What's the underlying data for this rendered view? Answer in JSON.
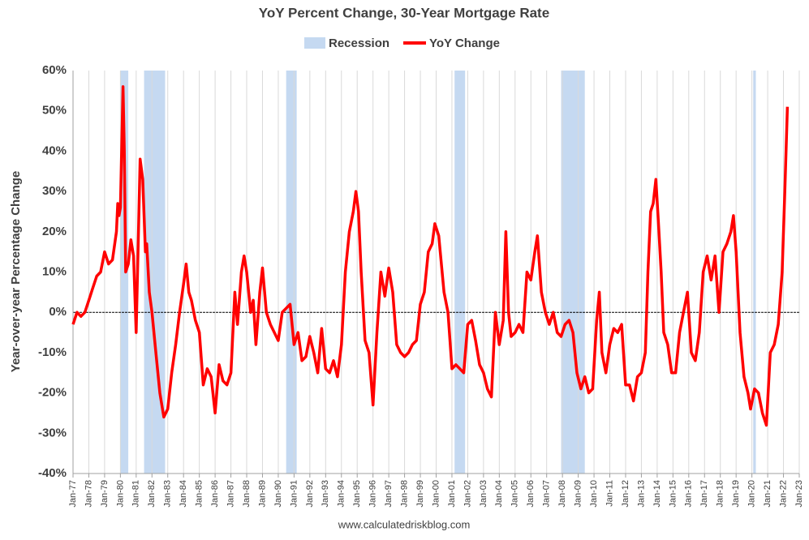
{
  "chart_data": {
    "type": "line",
    "title": "YoY Percent Change, 30-Year Mortgage Rate",
    "y_label": "Year-over-year Percentage Change",
    "source": "www.calculatedriskblog.com",
    "legend": "top",
    "grid": "x",
    "recessions": {
      "name": "Recession",
      "color": "#c5d9f1",
      "periods": [
        [
          "Jan-80",
          "Jul-80"
        ],
        [
          "Jul-81",
          "Nov-82"
        ],
        [
          "Jul-90",
          "Mar-91"
        ],
        [
          "Mar-01",
          "Nov-01"
        ],
        [
          "Dec-07",
          "Jun-09"
        ],
        [
          "Feb-20",
          "Apr-20"
        ]
      ]
    },
    "xlim": [
      "Jan-77",
      "Jan-23"
    ],
    "xticks": [
      "Jan-77",
      "Jan-78",
      "Jan-79",
      "Jan-80",
      "Jan-81",
      "Jan-82",
      "Jan-83",
      "Jan-84",
      "Jan-85",
      "Jan-86",
      "Jan-87",
      "Jan-88",
      "Jan-89",
      "Jan-90",
      "Jan-91",
      "Jan-92",
      "Jan-93",
      "Jan-94",
      "Jan-95",
      "Jan-96",
      "Jan-97",
      "Jan-98",
      "Jan-99",
      "Jan-00",
      "Jan-01",
      "Jan-02",
      "Jan-03",
      "Jan-04",
      "Jan-05",
      "Jan-06",
      "Jan-07",
      "Jan-08",
      "Jan-09",
      "Jan-10",
      "Jan-11",
      "Jan-12",
      "Jan-13",
      "Jan-14",
      "Jan-15",
      "Jan-16",
      "Jan-17",
      "Jan-18",
      "Jan-19",
      "Jan-20",
      "Jan-21",
      "Jan-22",
      "Jan-23"
    ],
    "ylim": [
      -40,
      60
    ],
    "yticks": [
      {
        "value": -40,
        "label": "-40%"
      },
      {
        "value": -30,
        "label": "-30%"
      },
      {
        "value": -20,
        "label": "-20%"
      },
      {
        "value": -10,
        "label": "-10%"
      },
      {
        "value": 0,
        "label": "0%"
      },
      {
        "value": 10,
        "label": "10%"
      },
      {
        "value": 20,
        "label": "20%"
      },
      {
        "value": 30,
        "label": "30%"
      },
      {
        "value": 40,
        "label": "40%"
      },
      {
        "value": 50,
        "label": "50%"
      },
      {
        "value": 60,
        "label": "60%"
      }
    ],
    "x": [
      "Jan-77",
      "Apr-77",
      "Jul-77",
      "Oct-77",
      "Jan-78",
      "Apr-78",
      "Jul-78",
      "Oct-78",
      "Jan-79",
      "Apr-79",
      "Jul-79",
      "Oct-79",
      "Nov-79",
      "Dec-79",
      "Jan-80",
      "Mar-80",
      "Apr-80",
      "May-80",
      "Jul-80",
      "Sep-80",
      "Nov-80",
      "Jan-81",
      "Apr-81",
      "Jun-81",
      "Aug-81",
      "Sep-81",
      "Nov-81",
      "Jan-82",
      "Apr-82",
      "Jul-82",
      "Oct-82",
      "Jan-83",
      "Apr-83",
      "Jul-83",
      "Oct-83",
      "Jan-84",
      "Mar-84",
      "May-84",
      "Jul-84",
      "Oct-84",
      "Jan-85",
      "Apr-85",
      "Jul-85",
      "Oct-85",
      "Jan-86",
      "Apr-86",
      "Jul-86",
      "Oct-86",
      "Jan-87",
      "Apr-87",
      "Jun-87",
      "Sep-87",
      "Nov-87",
      "Jan-88",
      "Apr-88",
      "Jun-88",
      "Aug-88",
      "Nov-88",
      "Jan-89",
      "Apr-89",
      "Jul-89",
      "Oct-89",
      "Jan-90",
      "Apr-90",
      "Jul-90",
      "Oct-90",
      "Jan-91",
      "Apr-91",
      "Jul-91",
      "Oct-91",
      "Jan-92",
      "Apr-92",
      "Jul-92",
      "Oct-92",
      "Jan-93",
      "Apr-93",
      "Jul-93",
      "Oct-93",
      "Jan-94",
      "Apr-94",
      "Jul-94",
      "Oct-94",
      "Dec-94",
      "Feb-95",
      "Apr-95",
      "Jul-95",
      "Oct-95",
      "Jan-96",
      "Apr-96",
      "Jul-96",
      "Oct-96",
      "Jan-97",
      "Apr-97",
      "Jul-97",
      "Oct-97",
      "Jan-98",
      "Apr-98",
      "Jul-98",
      "Oct-98",
      "Jan-99",
      "Apr-99",
      "Jul-99",
      "Oct-99",
      "Dec-99",
      "Mar-00",
      "Jul-00",
      "Oct-00",
      "Jan-01",
      "Apr-01",
      "Jul-01",
      "Oct-01",
      "Jan-02",
      "Apr-02",
      "Jul-02",
      "Oct-02",
      "Jan-03",
      "Apr-03",
      "Jul-03",
      "Oct-03",
      "Jan-04",
      "Apr-04",
      "Jun-04",
      "Aug-04",
      "Oct-04",
      "Jan-05",
      "Apr-05",
      "Jul-05",
      "Oct-05",
      "Jan-06",
      "Apr-06",
      "Jun-06",
      "Sep-06",
      "Dec-06",
      "Mar-07",
      "Jun-07",
      "Sep-07",
      "Dec-07",
      "Mar-08",
      "Jun-08",
      "Sep-08",
      "Dec-08",
      "Mar-09",
      "Jun-09",
      "Sep-09",
      "Dec-09",
      "Mar-10",
      "May-10",
      "Jul-10",
      "Oct-10",
      "Jan-11",
      "Apr-11",
      "Jul-11",
      "Oct-11",
      "Jan-12",
      "Apr-12",
      "Jul-12",
      "Oct-12",
      "Jan-13",
      "Apr-13",
      "Jun-13",
      "Aug-13",
      "Oct-13",
      "Dec-13",
      "Feb-14",
      "Apr-14",
      "Jun-14",
      "Sep-14",
      "Dec-14",
      "Mar-15",
      "Jun-15",
      "Sep-15",
      "Dec-15",
      "Mar-16",
      "Jun-16",
      "Sep-16",
      "Dec-16",
      "Mar-17",
      "Jun-17",
      "Sep-17",
      "Dec-17",
      "Mar-18",
      "Jun-18",
      "Sep-18",
      "Nov-18",
      "Jan-19",
      "Apr-19",
      "Jul-19",
      "Oct-19",
      "Dec-19",
      "Mar-20",
      "Jun-20",
      "Sep-20",
      "Dec-20",
      "Mar-21",
      "Jun-21",
      "Sep-21",
      "Dec-21",
      "Feb-22",
      "Apr-22"
    ],
    "series": [
      {
        "name": "YoY Change",
        "color": "#ff0000",
        "values": [
          -3,
          0,
          -1,
          0,
          3,
          6,
          9,
          10,
          15,
          12,
          13,
          20,
          27,
          24,
          26,
          56,
          40,
          10,
          12,
          18,
          14,
          -5,
          38,
          33,
          15,
          17,
          5,
          0,
          -10,
          -20,
          -26,
          -24,
          -15,
          -8,
          0,
          7,
          12,
          5,
          3,
          -2,
          -5,
          -18,
          -14,
          -16,
          -25,
          -13,
          -17,
          -18,
          -15,
          5,
          -3,
          10,
          14,
          10,
          0,
          3,
          -8,
          5,
          11,
          0,
          -3,
          -5,
          -7,
          0,
          1,
          2,
          -8,
          -5,
          -12,
          -11,
          -6,
          -10,
          -15,
          -4,
          -14,
          -15,
          -12,
          -16,
          -8,
          10,
          20,
          25,
          30,
          25,
          10,
          -7,
          -10,
          -23,
          -5,
          10,
          4,
          11,
          5,
          -8,
          -10,
          -11,
          -10,
          -8,
          -7,
          2,
          5,
          15,
          17,
          22,
          19,
          5,
          0,
          -14,
          -13,
          -14,
          -15,
          -3,
          -2,
          -7,
          -13,
          -15,
          -19,
          -21,
          0,
          -8,
          -2,
          20,
          0,
          -6,
          -5,
          -3,
          -5,
          10,
          8,
          15,
          19,
          5,
          0,
          -3,
          0,
          -5,
          -6,
          -3,
          -2,
          -5,
          -15,
          -19,
          -16,
          -20,
          -19,
          -2,
          5,
          -10,
          -15,
          -8,
          -4,
          -5,
          -3,
          -18,
          -18,
          -22,
          -16,
          -15,
          -10,
          10,
          25,
          27,
          33,
          22,
          10,
          -5,
          -8,
          -15,
          -15,
          -5,
          0,
          5,
          -10,
          -12,
          -5,
          10,
          14,
          8,
          14,
          0,
          15,
          17,
          20,
          24,
          15,
          -5,
          -16,
          -20,
          -24,
          -19,
          -20,
          -25,
          -28,
          -10,
          -8,
          -3,
          10,
          30,
          51
        ]
      }
    ]
  }
}
